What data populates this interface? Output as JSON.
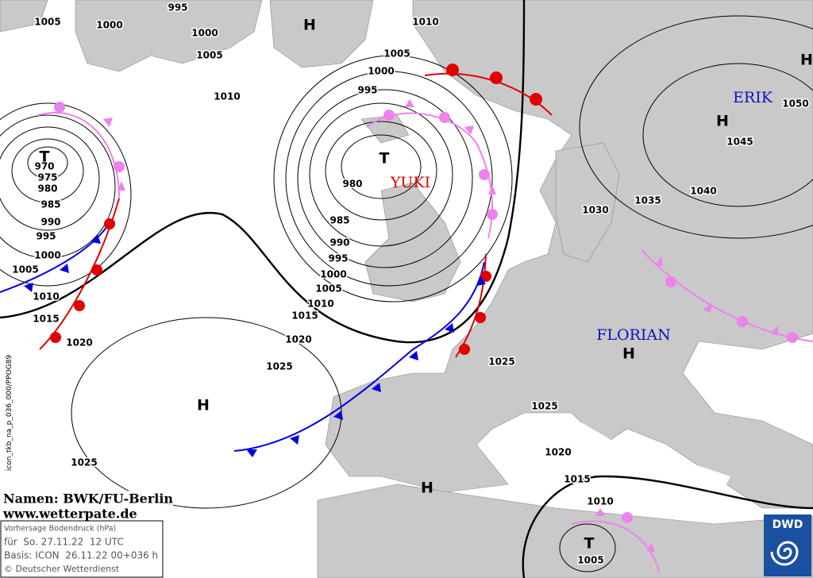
{
  "isobar_labels": [
    "1005",
    "1000",
    "995",
    "1000",
    "1005",
    "1010",
    "1010",
    "1005",
    "1000",
    "995",
    "970",
    "975",
    "980",
    "985",
    "990",
    "995",
    "1000",
    "1005",
    "1010",
    "1015",
    "1020",
    "980",
    "985",
    "990",
    "995",
    "1000",
    "1005",
    "1010",
    "1015",
    "1020",
    "1025",
    "1025",
    "1025",
    "1020",
    "1015",
    "1010",
    "1005",
    "1025",
    "1030",
    "1035",
    "1040",
    "1045",
    "1050"
  ],
  "pressure_centers": [
    "H",
    "H",
    "H",
    "T",
    "T",
    "H",
    "H",
    "H",
    "T"
  ],
  "storm_names": [
    "YUKI",
    "ERIK",
    "FLORIAN"
  ],
  "credits": {
    "names": "Namen: BWK/FU-Berlin",
    "website": "www.wetterpate.de"
  },
  "info_box": {
    "title": "Vorhersage Bodendruck (hPa)",
    "valid": "für  So. 27.11.22  12 UTC",
    "basis": "Basis: ICON  26.11.22 00+036 h",
    "copyright": "© Deutscher Wetterdienst"
  },
  "run_id": "icon_tkb_na_p_036_000/PPOG89",
  "logo": "DWD"
}
